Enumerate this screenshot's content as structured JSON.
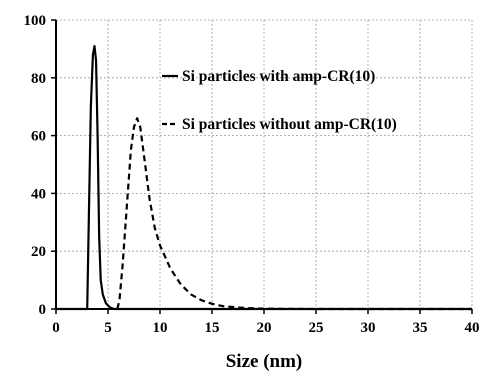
{
  "chart_data": {
    "type": "line",
    "title": "",
    "xlabel": "Size (nm)",
    "ylabel": "",
    "xlim": [
      0,
      40
    ],
    "ylim": [
      0,
      100
    ],
    "x_ticks": [
      "0",
      "5",
      "10",
      "15",
      "20",
      "25",
      "30",
      "35",
      "40"
    ],
    "y_ticks": [
      "0",
      "20",
      "40",
      "60",
      "80",
      "100"
    ],
    "grid": true,
    "legend_position": "top-right",
    "series": [
      {
        "name": "Si particles with amp-CR(10)",
        "line_style": "solid",
        "color": "#000000",
        "points": [
          [
            0,
            0
          ],
          [
            3.0,
            0
          ],
          [
            3.15,
            30
          ],
          [
            3.35,
            70
          ],
          [
            3.55,
            88
          ],
          [
            3.7,
            91
          ],
          [
            3.85,
            86
          ],
          [
            4.0,
            60
          ],
          [
            4.15,
            25
          ],
          [
            4.3,
            10
          ],
          [
            4.5,
            5
          ],
          [
            4.8,
            2
          ],
          [
            5.2,
            0.5
          ],
          [
            5.6,
            0
          ],
          [
            40,
            0
          ]
        ]
      },
      {
        "name": "Si particles without amp-CR(10)",
        "line_style": "dashed",
        "color": "#000000",
        "points": [
          [
            5.9,
            0
          ],
          [
            6.1,
            3
          ],
          [
            6.4,
            15
          ],
          [
            6.8,
            35
          ],
          [
            7.2,
            55
          ],
          [
            7.5,
            63
          ],
          [
            7.8,
            66
          ],
          [
            8.1,
            63
          ],
          [
            8.5,
            52
          ],
          [
            9.0,
            38
          ],
          [
            9.5,
            28
          ],
          [
            10,
            22
          ],
          [
            11,
            14
          ],
          [
            12,
            8.5
          ],
          [
            13,
            5
          ],
          [
            14,
            3
          ],
          [
            15,
            1.8
          ],
          [
            16,
            1
          ],
          [
            18,
            0.4
          ],
          [
            20,
            0.1
          ],
          [
            25,
            0
          ],
          [
            40,
            0
          ]
        ]
      }
    ]
  }
}
